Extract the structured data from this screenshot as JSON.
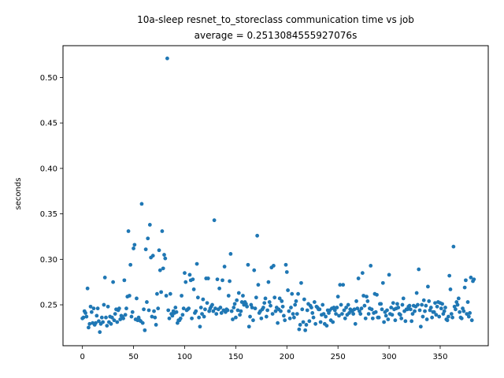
{
  "chart_data": {
    "type": "scatter",
    "title": "10a-sleep resnet_to_storeclass communication time vs job",
    "subtitle": "average = 0.2513084555927076s",
    "xlabel": "",
    "ylabel": "seconds",
    "xlim": [
      -19,
      397
    ],
    "ylim": [
      0.205,
      0.535
    ],
    "xticks": [
      0,
      50,
      100,
      150,
      200,
      250,
      300,
      350
    ],
    "yticks": [
      0.25,
      0.3,
      0.35,
      0.4,
      0.45,
      0.5
    ],
    "ytick_labels": [
      "0.25",
      "0.30",
      "0.35",
      "0.40",
      "0.45",
      "0.50"
    ],
    "grid": false,
    "marker_color": "#1f77b4",
    "series": [
      {
        "values": [
          0.235,
          0.236,
          0.243,
          0.241,
          0.237,
          0.268,
          0.225,
          0.229,
          0.248,
          0.242,
          0.23,
          0.246,
          0.228,
          0.23,
          0.238,
          0.246,
          0.232,
          0.22,
          0.229,
          0.236,
          0.231,
          0.25,
          0.28,
          0.236,
          0.227,
          0.248,
          0.231,
          0.237,
          0.229,
          0.236,
          0.275,
          0.233,
          0.24,
          0.245,
          0.231,
          0.244,
          0.246,
          0.234,
          0.238,
          0.237,
          0.235,
          0.277,
          0.239,
          0.246,
          0.259,
          0.331,
          0.26,
          0.294,
          0.237,
          0.242,
          0.312,
          0.316,
          0.234,
          0.257,
          0.233,
          0.236,
          0.233,
          0.232,
          0.361,
          0.23,
          0.245,
          0.222,
          0.311,
          0.253,
          0.323,
          0.244,
          0.338,
          0.302,
          0.237,
          0.304,
          0.243,
          0.236,
          0.228,
          0.262,
          0.246,
          0.31,
          0.288,
          0.264,
          0.331,
          0.29,
          0.305,
          0.301,
          0.26,
          0.521,
          0.244,
          0.235,
          0.262,
          0.24,
          0.238,
          0.243,
          0.241,
          0.247,
          0.242,
          0.23,
          0.233,
          0.233,
          0.235,
          0.26,
          0.239,
          0.246,
          0.285,
          0.275,
          0.244,
          0.245,
          0.246,
          0.283,
          0.277,
          0.235,
          0.278,
          0.267,
          0.241,
          0.243,
          0.295,
          0.258,
          0.236,
          0.226,
          0.247,
          0.24,
          0.256,
          0.237,
          0.245,
          0.279,
          0.252,
          0.279,
          0.243,
          0.246,
          0.248,
          0.25,
          0.243,
          0.343,
          0.246,
          0.24,
          0.278,
          0.245,
          0.268,
          0.247,
          0.241,
          0.277,
          0.244,
          0.292,
          0.242,
          0.245,
          0.244,
          0.26,
          0.276,
          0.306,
          0.243,
          0.234,
          0.247,
          0.251,
          0.236,
          0.255,
          0.244,
          0.263,
          0.239,
          0.243,
          0.253,
          0.26,
          0.25,
          0.253,
          0.251,
          0.248,
          0.294,
          0.226,
          0.237,
          0.25,
          0.247,
          0.233,
          0.288,
          0.246,
          0.258,
          0.326,
          0.272,
          0.241,
          0.243,
          0.235,
          0.245,
          0.247,
          0.252,
          0.257,
          0.237,
          0.244,
          0.275,
          0.253,
          0.249,
          0.291,
          0.24,
          0.293,
          0.258,
          0.243,
          0.247,
          0.23,
          0.245,
          0.257,
          0.243,
          0.254,
          0.248,
          0.238,
          0.233,
          0.294,
          0.286,
          0.266,
          0.243,
          0.235,
          0.247,
          0.262,
          0.24,
          0.236,
          0.25,
          0.254,
          0.24,
          0.262,
          0.223,
          0.228,
          0.274,
          0.245,
          0.231,
          0.256,
          0.222,
          0.228,
          0.244,
          0.251,
          0.232,
          0.249,
          0.247,
          0.241,
          0.236,
          0.253,
          0.229,
          0.248,
          0.247,
          0.245,
          0.245,
          0.231,
          0.239,
          0.25,
          0.24,
          0.229,
          0.237,
          0.227,
          0.244,
          0.241,
          0.244,
          0.233,
          0.246,
          0.231,
          0.247,
          0.244,
          0.24,
          0.247,
          0.259,
          0.238,
          0.272,
          0.25,
          0.24,
          0.272,
          0.244,
          0.235,
          0.247,
          0.239,
          0.25,
          0.241,
          0.245,
          0.244,
          0.243,
          0.24,
          0.245,
          0.229,
          0.254,
          0.246,
          0.279,
          0.243,
          0.24,
          0.246,
          0.285,
          0.26,
          0.249,
          0.235,
          0.259,
          0.254,
          0.24,
          0.246,
          0.293,
          0.245,
          0.235,
          0.241,
          0.262,
          0.242,
          0.261,
          0.236,
          0.236,
          0.251,
          0.251,
          0.245,
          0.274,
          0.231,
          0.242,
          0.238,
          0.244,
          0.234,
          0.283,
          0.24,
          0.247,
          0.239,
          0.252,
          0.245,
          0.233,
          0.246,
          0.251,
          0.247,
          0.24,
          0.239,
          0.235,
          0.25,
          0.257,
          0.243,
          0.232,
          0.245,
          0.245,
          0.248,
          0.249,
          0.245,
          0.232,
          0.24,
          0.249,
          0.243,
          0.248,
          0.263,
          0.25,
          0.289,
          0.244,
          0.226,
          0.25,
          0.237,
          0.255,
          0.243,
          0.249,
          0.234,
          0.27,
          0.254,
          0.244,
          0.247,
          0.236,
          0.242,
          0.242,
          0.252,
          0.239,
          0.248,
          0.253,
          0.237,
          0.252,
          0.246,
          0.251,
          0.24,
          0.243,
          0.247,
          0.234,
          0.233,
          0.237,
          0.282,
          0.267,
          0.24,
          0.236,
          0.314,
          0.248,
          0.245,
          0.253,
          0.25,
          0.257,
          0.242,
          0.236,
          0.235,
          0.246,
          0.243,
          0.269,
          0.277,
          0.24,
          0.253,
          0.237,
          0.241,
          0.28,
          0.233,
          0.276,
          0.278
        ]
      }
    ]
  }
}
